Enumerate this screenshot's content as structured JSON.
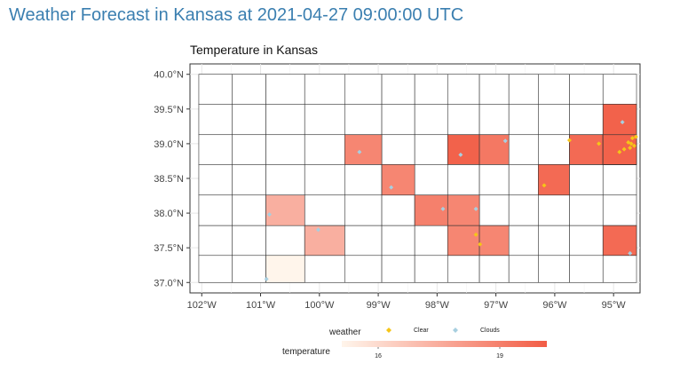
{
  "page_title": "Weather Forecast in Kansas at 2021-04-27 09:00:00 UTC",
  "map": {
    "title": "Temperature in Kansas",
    "x_ticks": [
      "102°W",
      "101°W",
      "100°W",
      "99°W",
      "98°W",
      "97°W",
      "96°W",
      "95°W"
    ],
    "y_ticks": [
      "40.0°N",
      "39.5°N",
      "39.0°N",
      "38.5°N",
      "38.0°N",
      "37.5°N",
      "37.0°N"
    ],
    "lon_range": [
      -102.2,
      -94.55
    ],
    "lat_range": [
      36.85,
      40.15
    ],
    "colors": {
      "clear": "#f5c518",
      "clouds": "#a7cfe0",
      "temp_low": "#fff5eb",
      "temp_high": "#f25c45",
      "border": "#333333",
      "grid": "#e6e6e6"
    }
  },
  "chart_data": {
    "type": "choropleth",
    "title": "Temperature in Kansas",
    "color_scale": {
      "label": "temperature",
      "ticks": [
        16,
        19
      ],
      "low": 14.5,
      "high": 20
    },
    "weather_legend": {
      "label": "weather",
      "entries": [
        "Clear",
        "Clouds"
      ]
    },
    "stations": [
      {
        "lon": -100.9,
        "lat": 37.05,
        "weather": "Clouds",
        "temperature": 14.5
      },
      {
        "lon": -100.85,
        "lat": 37.98,
        "weather": "Clouds",
        "temperature": 17
      },
      {
        "lon": -100.02,
        "lat": 37.76,
        "weather": "Clouds",
        "temperature": 17
      },
      {
        "lon": -99.32,
        "lat": 38.88,
        "weather": "Clouds",
        "temperature": 18.5
      },
      {
        "lon": -98.78,
        "lat": 38.37,
        "weather": "Clouds",
        "temperature": 18.5
      },
      {
        "lon": -97.9,
        "lat": 38.06,
        "weather": "Clouds",
        "temperature": 18.7
      },
      {
        "lon": -97.6,
        "lat": 38.84,
        "weather": "Clouds",
        "temperature": 19.8
      },
      {
        "lon": -97.34,
        "lat": 38.06,
        "weather": "Clouds",
        "temperature": 18.5
      },
      {
        "lon": -97.34,
        "lat": 37.69,
        "weather": "Clear",
        "temperature": 18.5
      },
      {
        "lon": -97.27,
        "lat": 37.55,
        "weather": "Clear",
        "temperature": 18.5
      },
      {
        "lon": -96.84,
        "lat": 39.04,
        "weather": "Clouds",
        "temperature": 19
      },
      {
        "lon": -96.18,
        "lat": 38.4,
        "weather": "Clear",
        "temperature": 19.5
      },
      {
        "lon": -95.75,
        "lat": 39.05,
        "weather": "Clear",
        "temperature": 19.5
      },
      {
        "lon": -95.25,
        "lat": 39.0,
        "weather": "Clear",
        "temperature": 19.5
      },
      {
        "lon": -94.9,
        "lat": 38.88,
        "weather": "Clear",
        "temperature": 19.5
      },
      {
        "lon": -94.82,
        "lat": 38.92,
        "weather": "Clear",
        "temperature": 19.5
      },
      {
        "lon": -94.75,
        "lat": 39.02,
        "weather": "Clear",
        "temperature": 19.8
      },
      {
        "lon": -94.7,
        "lat": 39.0,
        "weather": "Clear",
        "temperature": 19.8
      },
      {
        "lon": -94.68,
        "lat": 39.08,
        "weather": "Clear",
        "temperature": 19.8
      },
      {
        "lon": -94.65,
        "lat": 38.97,
        "weather": "Clear",
        "temperature": 19.8
      },
      {
        "lon": -94.72,
        "lat": 38.94,
        "weather": "Clear",
        "temperature": 19.8
      },
      {
        "lon": -94.62,
        "lat": 39.1,
        "weather": "Clear",
        "temperature": 19.8
      },
      {
        "lon": -94.85,
        "lat": 39.31,
        "weather": "Clouds",
        "temperature": 19.8
      },
      {
        "lon": -94.72,
        "lat": 37.42,
        "weather": "Clouds",
        "temperature": 19.5
      }
    ]
  },
  "legend": {
    "weather_title": "weather",
    "clear_label": "Clear",
    "clouds_label": "Clouds",
    "temperature_title": "temperature",
    "tick_16": "16",
    "tick_19": "19"
  }
}
